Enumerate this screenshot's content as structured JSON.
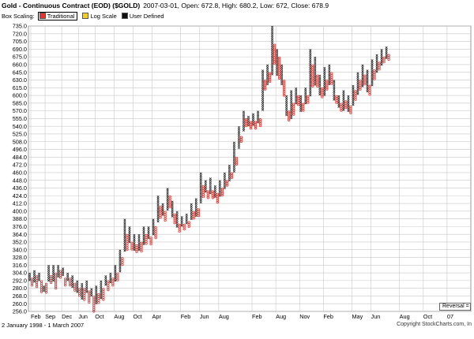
{
  "header": {
    "title": "Gold - Continuous Contract (EOD) ($GOLD)",
    "ohlc": "2007-03-01, Open: 672.8, High: 680.2, Low: 672, Close: 678.9",
    "box_scaling_label": "Box Scaling:",
    "options": [
      {
        "label": "Traditional",
        "color": "#e8332c",
        "active": true
      },
      {
        "label": "Log Scale",
        "color": "#f0d020",
        "active": false
      },
      {
        "label": "User Defined",
        "color": "#111111",
        "active": false
      }
    ]
  },
  "footer": {
    "date_range": "2 January 1998 - 1 March 2007",
    "copyright": "Copyright StockCharts.com, In"
  },
  "reversal_label": "Reversal =",
  "colors": {
    "x_column": "#111111",
    "o_column": "#e8332c",
    "grid": "#c8c8c8",
    "frame": "#999999"
  },
  "chart_data": {
    "type": "point-and-figure",
    "title": "Gold - Continuous Contract (EOD) ($GOLD)",
    "y_ticks": [
      256.0,
      260.0,
      268.0,
      280.0,
      292.0,
      304.0,
      316.0,
      328.0,
      340.0,
      352.0,
      364.0,
      376.0,
      388.0,
      400.0,
      412.0,
      424.0,
      436.0,
      448.0,
      460.0,
      472.0,
      484.0,
      496.0,
      508.0,
      525.0,
      540.0,
      555.0,
      570.0,
      585.0,
      600.0,
      615.0,
      630.0,
      645.0,
      660.0,
      675.0,
      690.0,
      705.0,
      720.0,
      735.0
    ],
    "ylim": [
      256,
      735
    ],
    "x_tick_labels": [
      "Feb",
      "Sep",
      "Dec",
      "Jun",
      "Oct",
      "Aug",
      "Oct",
      "Apr",
      "Feb",
      "Jun",
      "Aug",
      "Feb",
      "Aug",
      "Nov",
      "Feb",
      "May",
      "Jun",
      "Aug",
      "Oct",
      "07"
    ],
    "x_tick_columns": [
      1,
      7,
      14,
      21,
      28,
      36,
      44,
      52,
      64,
      72,
      80,
      94,
      104,
      114,
      124,
      136,
      144,
      156,
      166,
      176
    ],
    "total_columns": 186,
    "grid": true,
    "column_tops": [
      304,
      296,
      308,
      300,
      304,
      292,
      284,
      288,
      316,
      300,
      316,
      304,
      316,
      308,
      312,
      296,
      304,
      296,
      300,
      288,
      292,
      280,
      288,
      280,
      292,
      276,
      280,
      268,
      284,
      272,
      292,
      280,
      300,
      292,
      304,
      296,
      316,
      304,
      340,
      328,
      388,
      364,
      376,
      352,
      364,
      348,
      364,
      352,
      376,
      364,
      376,
      360,
      388,
      376,
      424,
      408,
      412,
      400,
      436,
      424,
      416,
      396,
      400,
      380,
      392,
      380,
      396,
      384,
      412,
      400,
      420,
      404,
      460,
      440,
      448,
      432,
      452,
      432,
      440,
      428,
      448,
      436,
      460,
      448,
      472,
      460,
      508,
      484,
      540,
      520,
      570,
      555,
      560,
      550,
      565,
      550,
      570,
      555,
      650,
      630,
      660,
      645,
      735,
      700,
      690,
      675,
      660,
      630,
      600,
      570,
      610,
      585,
      615,
      600,
      600,
      585,
      615,
      600,
      690,
      660,
      675,
      640,
      640,
      615,
      655,
      630,
      660,
      645,
      630,
      600,
      600,
      585,
      610,
      590,
      600,
      580,
      620,
      610,
      645,
      630,
      660,
      640,
      650,
      620,
      670,
      650,
      680,
      665,
      690,
      675,
      695,
      680
    ],
    "column_bottoms": [
      292,
      284,
      288,
      280,
      292,
      272,
      276,
      272,
      292,
      288,
      292,
      280,
      296,
      296,
      300,
      284,
      292,
      284,
      280,
      276,
      272,
      268,
      264,
      264,
      272,
      260,
      268,
      256,
      260,
      260,
      264,
      264,
      284,
      276,
      288,
      284,
      292,
      292,
      304,
      316,
      336,
      340,
      352,
      340,
      340,
      336,
      340,
      336,
      348,
      348,
      356,
      348,
      364,
      356,
      384,
      388,
      392,
      384,
      400,
      404,
      392,
      380,
      376,
      368,
      376,
      372,
      380,
      376,
      388,
      388,
      392,
      392,
      412,
      420,
      428,
      420,
      428,
      420,
      420,
      412,
      424,
      424,
      436,
      440,
      448,
      452,
      460,
      472,
      496,
      508,
      530,
      540,
      540,
      535,
      540,
      535,
      545,
      540,
      570,
      610,
      620,
      625,
      640,
      660,
      640,
      630,
      620,
      600,
      560,
      550,
      555,
      560,
      585,
      580,
      570,
      570,
      585,
      585,
      600,
      615,
      620,
      615,
      600,
      595,
      600,
      610,
      620,
      620,
      590,
      585,
      575,
      570,
      570,
      575,
      570,
      565,
      580,
      590,
      600,
      610,
      615,
      620,
      605,
      600,
      620,
      630,
      645,
      650,
      660,
      665,
      670,
      670
    ],
    "column_types": "alternating X/O, starting with X"
  }
}
